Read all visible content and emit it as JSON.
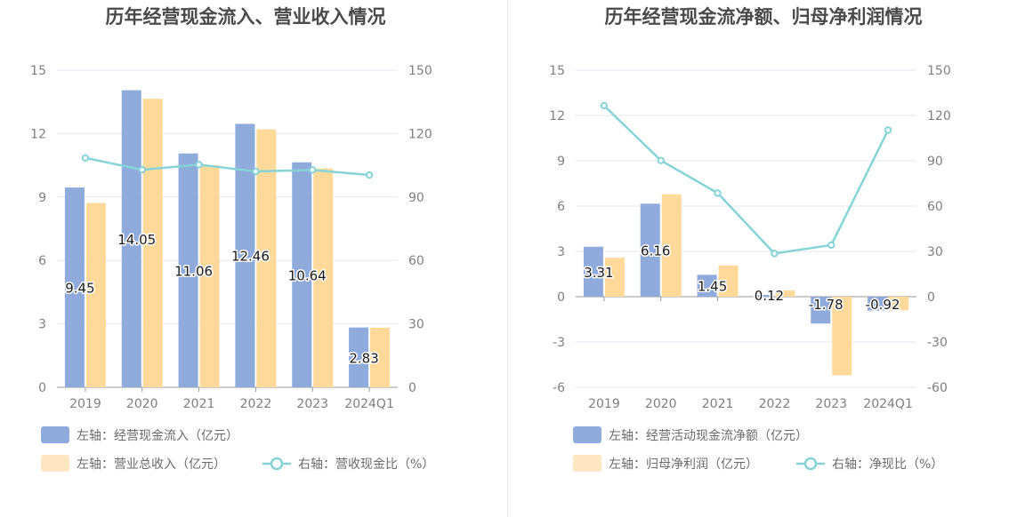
{
  "colors": {
    "blue": "#8eabdc",
    "orange": "#ffd99a",
    "orange_legend": "#ffe6c3",
    "line": "#86d4d8",
    "grid": "#e4e6f0",
    "axis": "#9a9a9a"
  },
  "chart_data": [
    {
      "type": "bar",
      "title": "历年经营现金流入、营业收入情况",
      "categories": [
        "2019",
        "2020",
        "2021",
        "2022",
        "2023",
        "2024Q1"
      ],
      "left_ticks": [
        "0",
        "3",
        "6",
        "9",
        "12",
        "15"
      ],
      "right_ticks": [
        "0",
        "30",
        "60",
        "90",
        "120",
        "150"
      ],
      "ylim_left": [
        0,
        15
      ],
      "ylim_right": [
        0,
        150
      ],
      "series": [
        {
          "name": "左轴：经营现金流入（亿元）",
          "axis": "left",
          "kind": "bar",
          "color_key": "blue",
          "values": [
            9.45,
            14.05,
            11.06,
            12.46,
            10.64,
            2.83
          ],
          "labels": [
            "9.45",
            "14.05",
            "11.06",
            "12.46",
            "10.64",
            "2.83"
          ]
        },
        {
          "name": "左轴：营业总收入（亿元）",
          "axis": "left",
          "kind": "bar",
          "color_key": "orange",
          "values": [
            8.72,
            13.65,
            10.5,
            12.2,
            10.35,
            2.82
          ]
        },
        {
          "name": "右轴：营收现金比（%）",
          "axis": "right",
          "kind": "line",
          "color_key": "line",
          "values": [
            108.5,
            102.9,
            105.3,
            102.1,
            102.8,
            100.4
          ]
        }
      ],
      "legend": [
        {
          "label": "左轴：经营现金流入（亿元）",
          "type": "bar",
          "color_key": "blue"
        },
        {
          "label": "左轴：营业总收入（亿元）",
          "type": "bar",
          "color_key": "orange_legend"
        },
        {
          "label": "右轴：营收现金比（%）",
          "type": "line",
          "color_key": "line"
        }
      ]
    },
    {
      "type": "bar",
      "title": "历年经营现金流净额、归母净利润情况",
      "categories": [
        "2019",
        "2020",
        "2021",
        "2022",
        "2023",
        "2024Q1"
      ],
      "left_ticks": [
        "-6",
        "-3",
        "0",
        "3",
        "6",
        "9",
        "12",
        "15"
      ],
      "right_ticks": [
        "-60",
        "-30",
        "0",
        "30",
        "60",
        "90",
        "120",
        "150"
      ],
      "ylim_left": [
        -6,
        15
      ],
      "ylim_right": [
        -60,
        150
      ],
      "series": [
        {
          "name": "左轴：经营活动现金流净额（亿元）",
          "axis": "left",
          "kind": "bar",
          "color_key": "blue",
          "values": [
            3.31,
            6.16,
            1.45,
            0.12,
            -1.78,
            -0.92
          ],
          "labels": [
            "3.31",
            "6.16",
            "1.45",
            "0.12",
            "-1.78",
            "-0.92"
          ]
        },
        {
          "name": "左轴：归母净利润（亿元）",
          "axis": "left",
          "kind": "bar",
          "color_key": "orange",
          "values": [
            2.58,
            6.78,
            2.07,
            0.42,
            -5.2,
            -0.9
          ]
        },
        {
          "name": "右轴：净现比（%）",
          "axis": "right",
          "kind": "line",
          "color_key": "line",
          "values": [
            126.5,
            90.2,
            68.6,
            28.6,
            34.2,
            110.3
          ]
        }
      ],
      "legend": [
        {
          "label": "左轴：经营活动现金流净额（亿元）",
          "type": "bar",
          "color_key": "blue"
        },
        {
          "label": "左轴：归母净利润（亿元）",
          "type": "bar",
          "color_key": "orange_legend"
        },
        {
          "label": "右轴：净现比（%）",
          "type": "line",
          "color_key": "line"
        }
      ]
    }
  ]
}
